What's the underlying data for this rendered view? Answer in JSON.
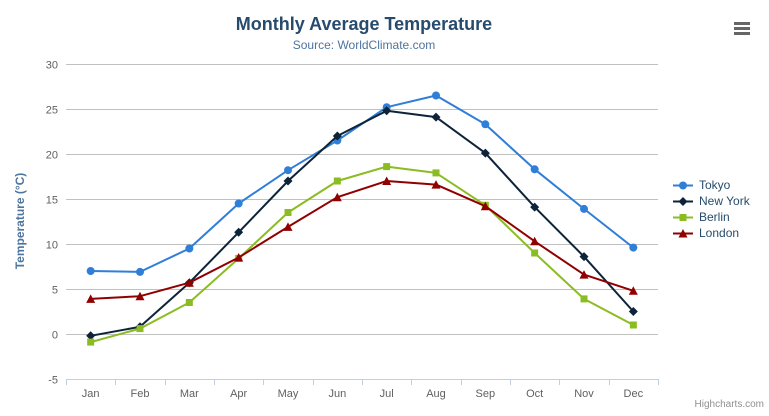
{
  "header": {
    "title": "Monthly Average Temperature",
    "subtitle": "Source: WorldClimate.com"
  },
  "credits": "Highcharts.com",
  "context_menu": {
    "icon": "hamburger-icon",
    "bar_color": "#666666"
  },
  "chart_data": {
    "type": "line",
    "title": "Monthly Average Temperature",
    "subtitle": "Source: WorldClimate.com",
    "xlabel": "",
    "ylabel": "Temperature (°C)",
    "categories": [
      "Jan",
      "Feb",
      "Mar",
      "Apr",
      "May",
      "Jun",
      "Jul",
      "Aug",
      "Sep",
      "Oct",
      "Nov",
      "Dec"
    ],
    "series": [
      {
        "name": "Tokyo",
        "color": "#2f7ed8",
        "marker": "circle",
        "values": [
          7.0,
          6.9,
          9.5,
          14.5,
          18.2,
          21.5,
          25.2,
          26.5,
          23.3,
          18.3,
          13.9,
          9.6
        ]
      },
      {
        "name": "New York",
        "color": "#0d233a",
        "marker": "diamond",
        "values": [
          -0.2,
          0.8,
          5.7,
          11.3,
          17.0,
          22.0,
          24.8,
          24.1,
          20.1,
          14.1,
          8.6,
          2.5
        ]
      },
      {
        "name": "Berlin",
        "color": "#8bbc21",
        "marker": "square",
        "values": [
          -0.9,
          0.6,
          3.5,
          8.4,
          13.5,
          17.0,
          18.6,
          17.9,
          14.3,
          9.0,
          3.9,
          1.0
        ]
      },
      {
        "name": "London",
        "color": "#910000",
        "marker": "triangle",
        "values": [
          3.9,
          4.2,
          5.7,
          8.5,
          11.9,
          15.2,
          17.0,
          16.6,
          14.2,
          10.3,
          6.6,
          4.8
        ]
      }
    ],
    "ylim": [
      -5,
      30
    ],
    "ytick_step": 5,
    "grid": true,
    "legend_position": "right",
    "styles": {
      "grid_color": "#C0C0C0",
      "axis_line_color": "#C0D0E0",
      "axis_label_color": "#606060",
      "title_color": "#274b6d",
      "subtitle_color": "#4d759e",
      "axis_title_color": "#4d759e",
      "legend_text_color": "#274b6d"
    }
  }
}
